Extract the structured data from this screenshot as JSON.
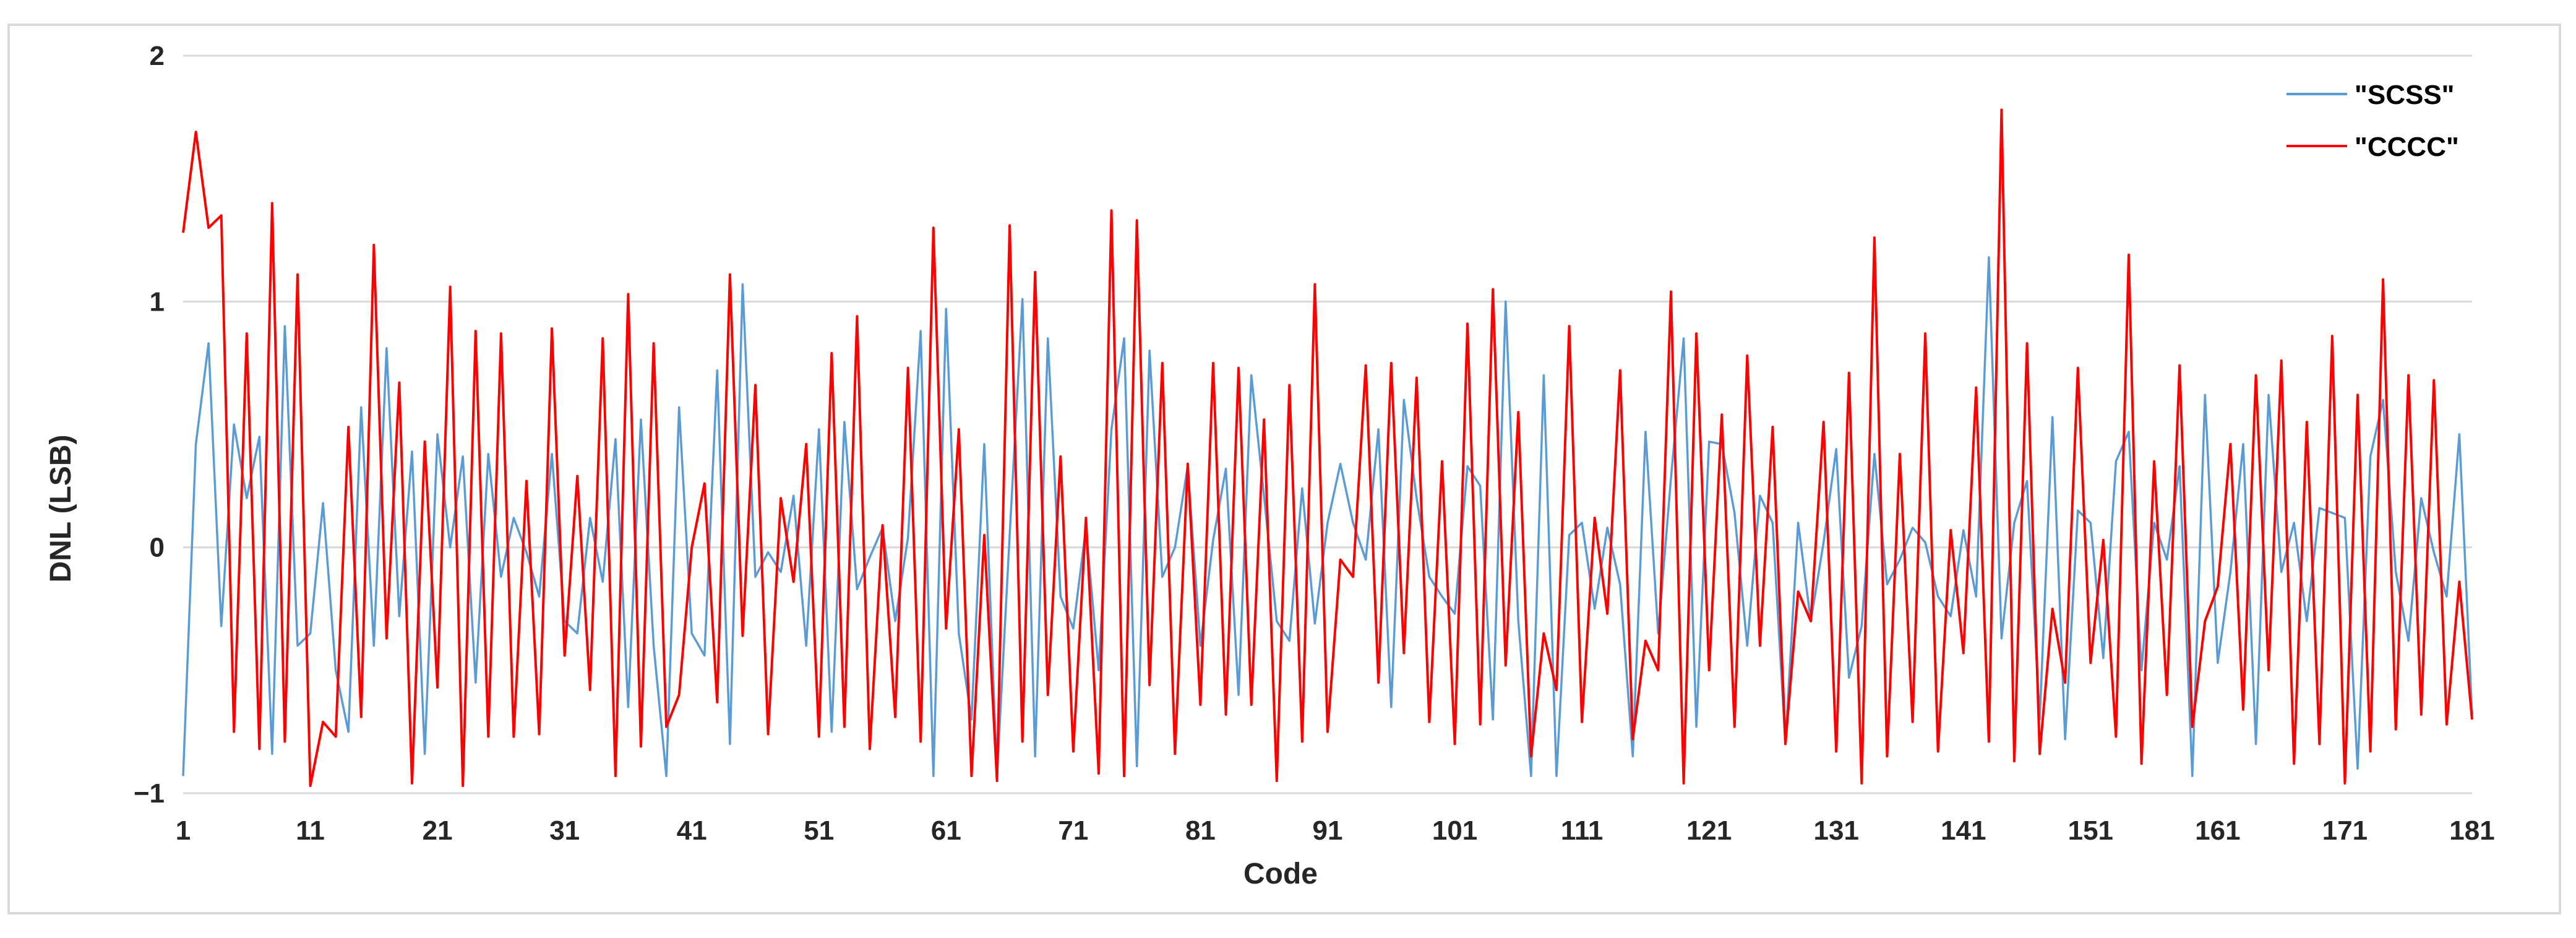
{
  "chart_data": {
    "type": "line",
    "xlabel": "Code",
    "ylabel": "DNL (LSB)",
    "xlim": [
      1,
      181
    ],
    "ylim": [
      -1,
      2
    ],
    "x_ticks": [
      1,
      11,
      21,
      31,
      41,
      51,
      61,
      71,
      81,
      91,
      101,
      111,
      121,
      131,
      141,
      151,
      161,
      171,
      181
    ],
    "y_ticks": [
      2,
      1,
      0,
      -1
    ],
    "y_tick_labels": [
      "2",
      "1",
      "0",
      "−1"
    ],
    "grid": true,
    "legend_position": "top-right",
    "series": [
      {
        "name": "\"SCSS\"",
        "color": "#5b9bd5",
        "values": [
          -0.93,
          0.42,
          0.83,
          -0.32,
          0.5,
          0.2,
          0.45,
          -0.84,
          0.9,
          -0.4,
          -0.35,
          0.18,
          -0.5,
          -0.75,
          0.57,
          -0.4,
          0.81,
          -0.28,
          0.39,
          -0.84,
          0.46,
          0.0,
          0.37,
          -0.55,
          0.38,
          -0.12,
          0.12,
          -0.02,
          -0.2,
          0.38,
          -0.3,
          -0.35,
          0.12,
          -0.14,
          0.44,
          -0.65,
          0.52,
          -0.4,
          -0.93,
          0.57,
          -0.35,
          -0.44,
          0.72,
          -0.8,
          1.07,
          -0.12,
          -0.02,
          -0.1,
          0.21,
          -0.4,
          0.48,
          -0.75,
          0.51,
          -0.17,
          -0.04,
          0.08,
          -0.3,
          0.04,
          0.88,
          -0.93,
          0.97,
          -0.35,
          -0.7,
          0.42,
          -0.93,
          0.05,
          1.01,
          -0.85,
          0.85,
          -0.2,
          -0.33,
          0.08,
          -0.5,
          0.48,
          0.85,
          -0.89,
          0.8,
          -0.12,
          0.0,
          0.33,
          -0.4,
          0.03,
          0.32,
          -0.6,
          0.7,
          0.21,
          -0.3,
          -0.38,
          0.24,
          -0.31,
          0.1,
          0.34,
          0.1,
          -0.05,
          0.48,
          -0.65,
          0.6,
          0.2,
          -0.12,
          -0.2,
          -0.27,
          0.33,
          0.25,
          -0.7,
          1.0,
          -0.3,
          -0.93,
          0.7,
          -0.93,
          0.05,
          0.1,
          -0.25,
          0.08,
          -0.15,
          -0.85,
          0.47,
          -0.35,
          0.28,
          0.85,
          -0.73,
          0.43,
          0.42,
          0.14,
          -0.4,
          0.21,
          0.1,
          -0.8,
          0.1,
          -0.3,
          0.02,
          0.4,
          -0.53,
          -0.32,
          0.38,
          -0.15,
          -0.05,
          0.08,
          0.02,
          -0.2,
          -0.28,
          0.07,
          -0.2,
          1.18,
          -0.37,
          0.1,
          0.27,
          -0.7,
          0.53,
          -0.78,
          0.15,
          0.1,
          -0.45,
          0.35,
          0.47,
          -0.5,
          0.1,
          -0.05,
          0.33,
          -0.93,
          0.62,
          -0.47,
          -0.1,
          0.42,
          -0.8,
          0.62,
          -0.1,
          0.1,
          -0.3,
          0.16,
          0.14,
          0.12,
          -0.9,
          0.37,
          0.6,
          -0.1,
          -0.38,
          0.2,
          -0.02,
          -0.2,
          0.46,
          -0.68
        ]
      },
      {
        "name": "\"CCCC\"",
        "color": "#ff0000",
        "values": [
          1.28,
          1.69,
          1.3,
          1.35,
          -0.75,
          0.87,
          -0.82,
          1.4,
          -0.79,
          1.11,
          -0.97,
          -0.71,
          -0.77,
          0.49,
          -0.69,
          1.23,
          -0.37,
          0.67,
          -0.96,
          0.43,
          -0.57,
          1.06,
          -0.97,
          0.88,
          -0.77,
          0.87,
          -0.77,
          0.27,
          -0.76,
          0.89,
          -0.44,
          0.29,
          -0.58,
          0.85,
          -0.93,
          1.03,
          -0.81,
          0.83,
          -0.73,
          -0.6,
          0.0,
          0.26,
          -0.63,
          1.11,
          -0.36,
          0.66,
          -0.76,
          0.2,
          -0.14,
          0.42,
          -0.77,
          0.79,
          -0.73,
          0.94,
          -0.82,
          0.09,
          -0.69,
          0.73,
          -0.79,
          1.3,
          -0.33,
          0.48,
          -0.93,
          0.05,
          -0.95,
          1.31,
          -0.79,
          1.12,
          -0.6,
          0.37,
          -0.83,
          0.12,
          -0.92,
          1.37,
          -0.93,
          1.33,
          -0.56,
          0.75,
          -0.84,
          0.34,
          -0.64,
          0.75,
          -0.68,
          0.73,
          -0.64,
          0.52,
          -0.95,
          0.66,
          -0.79,
          1.07,
          -0.75,
          -0.05,
          -0.12,
          0.74,
          -0.55,
          0.75,
          -0.43,
          0.69,
          -0.71,
          0.35,
          -0.8,
          0.91,
          -0.72,
          1.05,
          -0.48,
          0.55,
          -0.85,
          -0.35,
          -0.58,
          0.9,
          -0.71,
          0.12,
          -0.27,
          0.72,
          -0.78,
          -0.38,
          -0.5,
          1.04,
          -0.96,
          0.87,
          -0.5,
          0.54,
          -0.73,
          0.78,
          -0.4,
          0.49,
          -0.8,
          -0.18,
          -0.3,
          0.51,
          -0.83,
          0.71,
          -0.96,
          1.26,
          -0.85,
          0.38,
          -0.71,
          0.87,
          -0.83,
          0.07,
          -0.43,
          0.65,
          -0.79,
          1.78,
          -0.87,
          0.83,
          -0.84,
          -0.25,
          -0.55,
          0.73,
          -0.47,
          0.03,
          -0.77,
          1.19,
          -0.88,
          0.35,
          -0.6,
          0.74,
          -0.73,
          -0.3,
          -0.16,
          0.42,
          -0.66,
          0.7,
          -0.5,
          0.76,
          -0.88,
          0.51,
          -0.8,
          0.86,
          -0.96,
          0.62,
          -0.83,
          1.09,
          -0.74,
          0.7,
          -0.68,
          0.68,
          -0.72,
          -0.14,
          -0.7
        ]
      }
    ]
  }
}
